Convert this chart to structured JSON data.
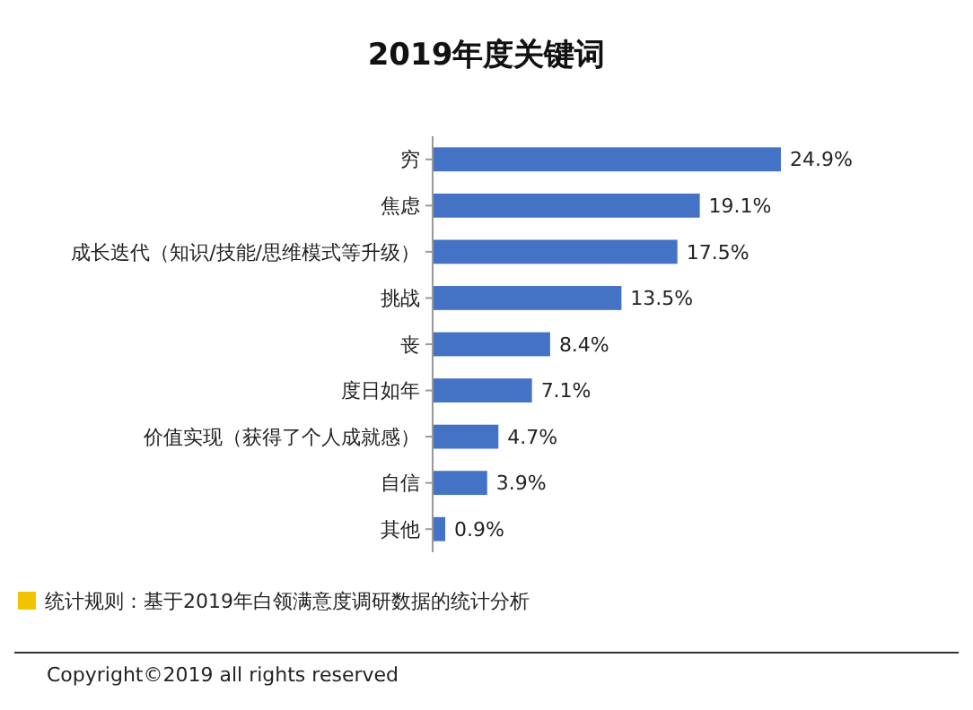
{
  "chart_data": {
    "type": "bar",
    "orientation": "horizontal",
    "title": "2019年度关键词",
    "categories": [
      "穷",
      "焦虑",
      "成长迭代（知识/技能/思维模式等升级）",
      "挑战",
      "丧",
      "度日如年",
      "价值实现（获得了个人成就感）",
      "自信",
      "其他"
    ],
    "values": [
      24.9,
      19.1,
      17.5,
      13.5,
      8.4,
      7.1,
      4.7,
      3.9,
      0.9
    ],
    "value_labels": [
      "24.9%",
      "19.1%",
      "17.5%",
      "13.5%",
      "8.4%",
      "7.1%",
      "4.7%",
      "3.9%",
      "0.9%"
    ],
    "color": "#4472c4",
    "annotations": [
      "统计规则：基于2019年白领满意度调研数据的统计分析",
      "Copyright©2019 all rights reserved"
    ]
  }
}
